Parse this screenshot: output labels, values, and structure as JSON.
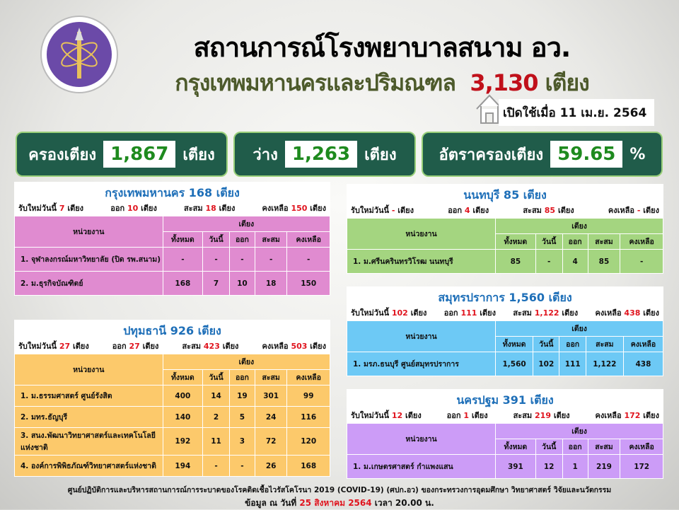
{
  "header": {
    "title": "สถานการณ์โรงพยาบาลสนาม อว.",
    "subtitle_prefix": "กรุงเทพมหานครและปริมณฑล",
    "subtitle_total": "3,130",
    "subtitle_unit": "เตียง",
    "opened": "เปิดใช้เมื่อ 11 เม.ย. 2564"
  },
  "stats": {
    "occupied_label": "ครองเตียง",
    "occupied": "1,867",
    "vacant_label": "ว่าง",
    "vacant": "1,263",
    "unit": "เตียง",
    "rate_label": "อัตราครองเตียง",
    "rate": "59.65",
    "rate_unit": "%"
  },
  "labels": {
    "new": "รับใหม่วันนี้",
    "out": "ออก",
    "cum": "สะสม",
    "remain": "คงเหลือ",
    "bed": "เตียง",
    "unit_col": "หน่วยงาน",
    "cols": [
      "ทั้งหมด",
      "วันนี้",
      "ออก",
      "สะสม",
      "คงเหลือ"
    ]
  },
  "colors": {
    "bangkok": "#e08bd0",
    "pathum": "#fcc96b",
    "nonthaburi": "#a4d580",
    "samut": "#6dc9f5",
    "nakhon": "#cc9cf7",
    "accent_red": "#e0141e",
    "title_blue": "#1e6fb8",
    "stat_bg": "#205c4a"
  },
  "panels": [
    {
      "id": "bangkok",
      "title": "กรุงเทพมหานคร 168 เตียง",
      "new": "7",
      "out": "10",
      "cum": "18",
      "remain": "150",
      "rows": [
        {
          "name": "1. จุฬาลงกรณ์มหาวิทยาลัย (ปิด รพ.สนาม)",
          "v": [
            "-",
            "-",
            "-",
            "-",
            "-"
          ]
        },
        {
          "name": "2. ม.ธุรกิจบัณฑิตย์",
          "v": [
            "168",
            "7",
            "10",
            "18",
            "150"
          ]
        }
      ]
    },
    {
      "id": "pathum",
      "title": "ปทุมธานี 926 เตียง",
      "new": "27",
      "out": "27",
      "cum": "423",
      "remain": "503",
      "rows": [
        {
          "name": "1. ม.ธรรมศาสตร์ ศูนย์รังสิต",
          "v": [
            "400",
            "14",
            "19",
            "301",
            "99"
          ]
        },
        {
          "name": "2. มทร.ธัญบุรี",
          "v": [
            "140",
            "2",
            "5",
            "24",
            "116"
          ]
        },
        {
          "name": "3. สนง.พัฒนาวิทยาศาสตร์และเทคโนโลยีแห่งชาติ",
          "v": [
            "192",
            "11",
            "3",
            "72",
            "120"
          ]
        },
        {
          "name": "4. องค์การพิพิธภัณฑ์วิทยาศาสตร์แห่งชาติ",
          "v": [
            "194",
            "-",
            "-",
            "26",
            "168"
          ]
        }
      ]
    },
    {
      "id": "nonthaburi",
      "title": "นนทบุรี 85 เตียง",
      "new": "-",
      "out": "4",
      "cum": "85",
      "remain": "-",
      "rows": [
        {
          "name": "1. ม.ศรีนครินทรวิโรฒ นนทบุรี",
          "v": [
            "85",
            "-",
            "4",
            "85",
            "-"
          ]
        }
      ]
    },
    {
      "id": "samut",
      "title": "สมุทรปราการ 1,560 เตียง",
      "new": "102",
      "out": "111",
      "cum": "1,122",
      "remain": "438",
      "rows": [
        {
          "name": "1. มรภ.ธนบุรี ศูนย์สมุทรปราการ",
          "v": [
            "1,560",
            "102",
            "111",
            "1,122",
            "438"
          ]
        }
      ]
    },
    {
      "id": "nakhon",
      "title": "นครปฐม 391 เตียง",
      "new": "12",
      "out": "1",
      "cum": "219",
      "remain": "172",
      "rows": [
        {
          "name": "1. ม.เกษตรศาสตร์ กำแพงแสน",
          "v": [
            "391",
            "12",
            "1",
            "219",
            "172"
          ]
        }
      ]
    }
  ],
  "footer": {
    "line1": "ศูนย์ปฏิบัติการและบริหารสถานการณ์การระบาดของโรคติดเชื้อไวรัสโคโรนา 2019 (COVID-19) (ศปก.อว) ของกระทรวงการอุดมศึกษา วิทยาศาสตร์ วิจัยและนวัตกรรม",
    "prefix": "ข้อมูล ณ วันที่",
    "date": "25 สิงหาคม 2564",
    "time": "เวลา 20.00 น."
  }
}
